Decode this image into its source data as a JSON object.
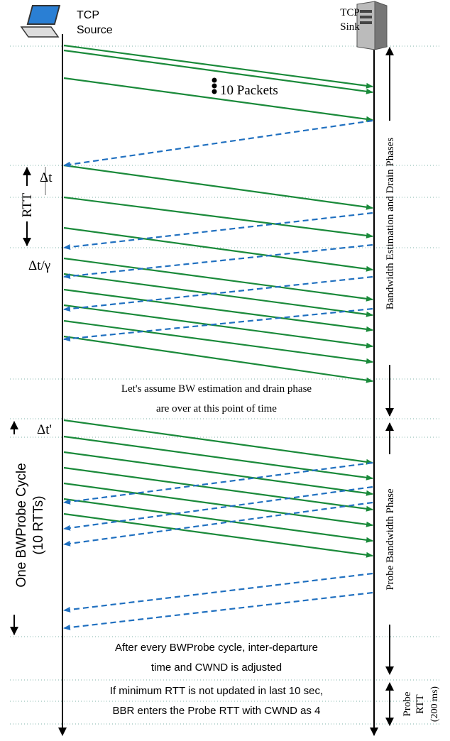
{
  "source": {
    "lines": [
      "TCP",
      "Source"
    ]
  },
  "sink": {
    "lines": [
      "TCP",
      "Sink"
    ]
  },
  "annotations": {
    "packets": "10 Packets",
    "delta_t": "Δt",
    "rtt": "RTT",
    "delta_t_gamma": "Δt/γ",
    "assume": [
      "Let's assume BW estimation and drain phase",
      "are over at this point of time"
    ],
    "delta_t_prime": "Δt'",
    "cycle": [
      "One BWProbe Cycle",
      "(10 RTTs)"
    ],
    "after": [
      "After every BWProbe cycle, inter-departure",
      "time and CWND is adjusted"
    ],
    "probe_rtt_note": [
      "If minimum RTT is not updated in last 10 sec,",
      "BBR enters the Probe RTT with CWND as 4"
    ]
  },
  "phases": {
    "bw_est": "Bandwidth Estimation and Drain Phases",
    "probe_bw": "Probe Bandwidth Phase",
    "probe_rtt": [
      "Probe",
      "RTT",
      "(200 ms)"
    ]
  }
}
